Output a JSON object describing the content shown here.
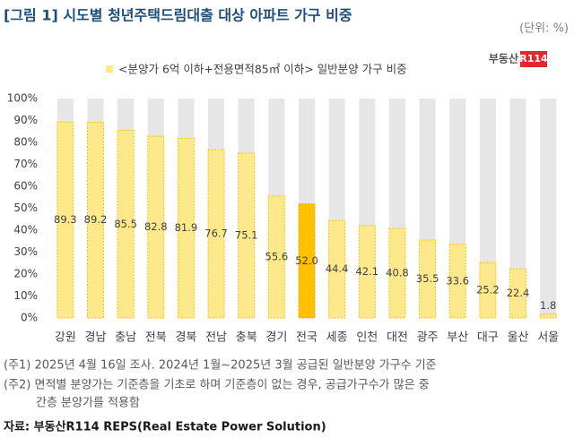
{
  "chart_data": {
    "type": "bar",
    "title": "[그림 1] 시도별 청년주택드림대출 대상 아파트 가구 비중",
    "unit": "(단위: %)",
    "logo": {
      "text": "부동산",
      "badge": "R114"
    },
    "categories": [
      "강원",
      "경남",
      "충남",
      "전북",
      "경북",
      "전남",
      "충북",
      "경기",
      "전국",
      "세종",
      "인천",
      "대전",
      "광주",
      "부산",
      "대구",
      "울산",
      "서울"
    ],
    "series": [
      {
        "name": "<분양가 6억 이하+전용면적85㎡ 이하> 일반분양 가구 비중",
        "color": "#fde98c",
        "colors": [
          "#fde98c",
          "#fde98c",
          "#fde98c",
          "#fde98c",
          "#fde98c",
          "#fde98c",
          "#fde98c",
          "#fde98c",
          "#ffc000",
          "#fde98c",
          "#fde98c",
          "#fde98c",
          "#fde98c",
          "#fde98c",
          "#fde98c",
          "#fde98c",
          "#fde98c"
        ],
        "values": [
          89.3,
          89.2,
          85.5,
          82.8,
          81.9,
          76.7,
          75.1,
          55.6,
          52.0,
          44.4,
          42.1,
          40.8,
          35.5,
          33.6,
          25.2,
          22.4,
          1.8
        ],
        "value_labels": [
          "89.3",
          "89.2",
          "85.5",
          "82.8",
          "81.9",
          "76.7",
          "75.1",
          "55.6",
          "52.0",
          "44.4",
          "42.1",
          "40.8",
          "35.5",
          "33.6",
          "25.2",
          "22.4",
          "1.8"
        ]
      }
    ],
    "ylim": [
      0,
      100
    ],
    "yticks": [
      {
        "value": 0,
        "label": "0%"
      },
      {
        "value": 10,
        "label": "10%"
      },
      {
        "value": 20,
        "label": "20%"
      },
      {
        "value": 30,
        "label": "30%"
      },
      {
        "value": 40,
        "label": "40%"
      },
      {
        "value": 50,
        "label": "50%"
      },
      {
        "value": 60,
        "label": "60%"
      },
      {
        "value": 70,
        "label": "70%"
      },
      {
        "value": 80,
        "label": "80%"
      },
      {
        "value": 90,
        "label": "90%"
      },
      {
        "value": 100,
        "label": "100%"
      }
    ],
    "background_color": "#e6e6e6",
    "notes": [
      "(주1) 2025년 4월 16일 조사. 2024년 1월~2025년 3월 공급된 일반분양 가구수 기준",
      "(주2) 면적별 분양가는 기준층을 기초로 하며 기준층이 없는 경우, 공급가구수가 많은 중",
      "간층 분양가를 적용함"
    ],
    "source": "자료: 부동산R114 REPS(Real Estate Power Solution)"
  }
}
